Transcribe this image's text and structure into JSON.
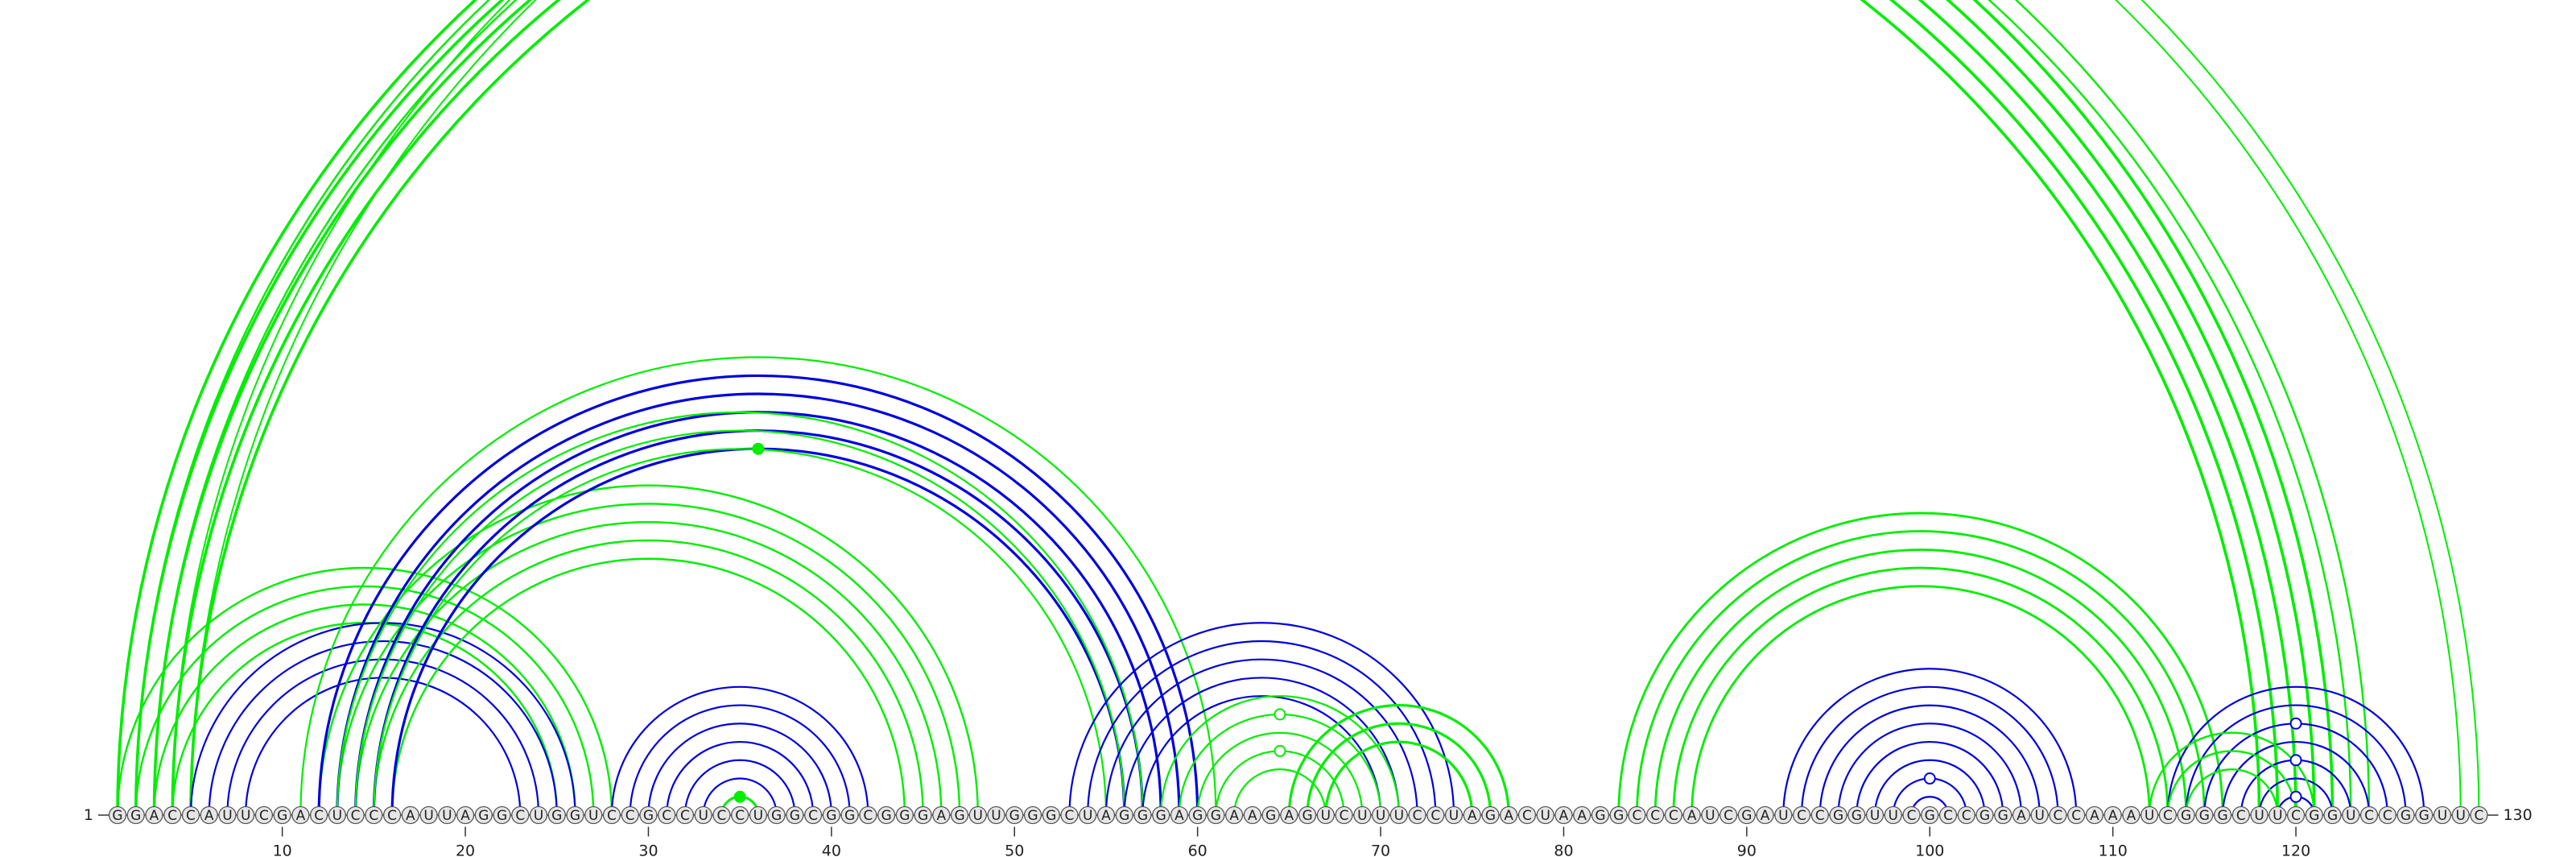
{
  "sequence": "GGACCAUUCGACUCCCAUUAGGCUGGUCCGCCUCCUGGCGGCGGGAGUUGGGCUAGGGAGGAAGAGUCUUUCCUAGACUAAGGCCCAUCGAUCCGGUUCGCCGGAUCCAAAUCGGGCUUCGGUCCGGUUC",
  "length": 130,
  "start_label": "1",
  "end_label": "130",
  "tick_positions": [
    10,
    20,
    30,
    40,
    50,
    60,
    70,
    80,
    90,
    100,
    110,
    120
  ],
  "tick_labels": [
    "10",
    "20",
    "30",
    "40",
    "50",
    "60",
    "70",
    "80",
    "90",
    "100",
    "110",
    "120"
  ],
  "colors": {
    "green": "#00ee00",
    "blue": "#0000dd"
  },
  "arc_groups": [
    {
      "color": "green",
      "pairs": [
        [
          1,
          122
        ],
        [
          2,
          121
        ],
        [
          3,
          120
        ],
        [
          4,
          119
        ],
        [
          5,
          118
        ]
      ],
      "stroke": 3.6
    },
    {
      "color": "green",
      "pairs": [
        [
          2,
          124
        ],
        [
          3,
          123
        ]
      ],
      "stroke": 2.4
    },
    {
      "color": "green",
      "pairs": [
        [
          4,
          130
        ],
        [
          5,
          129
        ]
      ],
      "stroke": 2.0
    },
    {
      "color": "green",
      "pairs": [
        [
          1,
          28
        ],
        [
          2,
          27
        ],
        [
          3,
          26
        ],
        [
          4,
          25
        ]
      ],
      "stroke": 2.4
    },
    {
      "color": "blue",
      "pairs": [
        [
          5,
          26
        ],
        [
          6,
          25
        ],
        [
          7,
          24
        ],
        [
          8,
          23
        ]
      ],
      "stroke": 2.2
    },
    {
      "color": "green",
      "pairs": [
        [
          12,
          48
        ],
        [
          13,
          47
        ],
        [
          14,
          46
        ],
        [
          15,
          45
        ],
        [
          16,
          44
        ]
      ],
      "stroke": 2.4
    },
    {
      "color": "blue",
      "pairs": [
        [
          12,
          60
        ],
        [
          13,
          59
        ],
        [
          14,
          58
        ],
        [
          15,
          57
        ],
        [
          16,
          56
        ]
      ],
      "stroke": 3.2
    },
    {
      "color": "green",
      "pairs": [
        [
          11,
          61
        ],
        [
          13,
          57
        ],
        [
          14,
          56
        ],
        [
          15,
          55
        ]
      ],
      "stroke": 2.2
    },
    {
      "color": "blue",
      "pairs": [
        [
          28,
          42
        ],
        [
          29,
          41
        ],
        [
          30,
          40
        ],
        [
          31,
          39
        ],
        [
          32,
          38
        ],
        [
          33,
          37
        ],
        [
          34,
          36
        ]
      ],
      "stroke": 2.2
    },
    {
      "color": "green",
      "pairs": [
        [
          34,
          36
        ]
      ],
      "stroke": 3.0
    },
    {
      "color": "blue",
      "pairs": [
        [
          53,
          74
        ],
        [
          54,
          73
        ],
        [
          55,
          72
        ],
        [
          56,
          71
        ],
        [
          57,
          70
        ]
      ],
      "stroke": 2.2
    },
    {
      "color": "green",
      "pairs": [
        [
          58,
          71
        ],
        [
          59,
          70
        ],
        [
          60,
          69
        ],
        [
          61,
          68
        ],
        [
          62,
          67
        ]
      ],
      "stroke": 2.2
    },
    {
      "color": "green",
      "pairs": [
        [
          65,
          77
        ],
        [
          66,
          76
        ],
        [
          67,
          75
        ]
      ],
      "stroke": 3.2
    },
    {
      "color": "green",
      "pairs": [
        [
          83,
          116
        ],
        [
          84,
          115
        ],
        [
          85,
          114
        ],
        [
          86,
          113
        ],
        [
          87,
          112
        ]
      ],
      "stroke": 2.8
    },
    {
      "color": "blue",
      "pairs": [
        [
          92,
          108
        ],
        [
          93,
          107
        ],
        [
          94,
          106
        ],
        [
          95,
          105
        ],
        [
          96,
          104
        ],
        [
          97,
          103
        ],
        [
          98,
          102
        ],
        [
          99,
          101
        ]
      ],
      "stroke": 2.2
    },
    {
      "color": "blue",
      "pairs": [
        [
          113,
          127
        ],
        [
          114,
          126
        ],
        [
          115,
          125
        ],
        [
          116,
          124
        ],
        [
          117,
          123
        ],
        [
          118,
          122
        ],
        [
          119,
          121
        ]
      ],
      "stroke": 2.2
    },
    {
      "color": "green",
      "pairs": [
        [
          112,
          121
        ],
        [
          113,
          120
        ],
        [
          114,
          119
        ]
      ],
      "stroke": 2.4
    }
  ],
  "markers": [
    {
      "i": 4,
      "j": 130,
      "color": "green",
      "filled": false
    },
    {
      "i": 16,
      "j": 56,
      "color": "green",
      "filled": true
    },
    {
      "i": 34,
      "j": 36,
      "color": "green",
      "filled": true
    },
    {
      "i": 59,
      "j": 70,
      "color": "green",
      "filled": false
    },
    {
      "i": 61,
      "j": 68,
      "color": "green",
      "filled": false
    },
    {
      "i": 98,
      "j": 102,
      "color": "blue",
      "filled": false
    },
    {
      "i": 115,
      "j": 125,
      "color": "blue",
      "filled": false
    },
    {
      "i": 117,
      "j": 123,
      "color": "blue",
      "filled": false
    },
    {
      "i": 119,
      "j": 121,
      "color": "blue",
      "filled": false
    }
  ]
}
